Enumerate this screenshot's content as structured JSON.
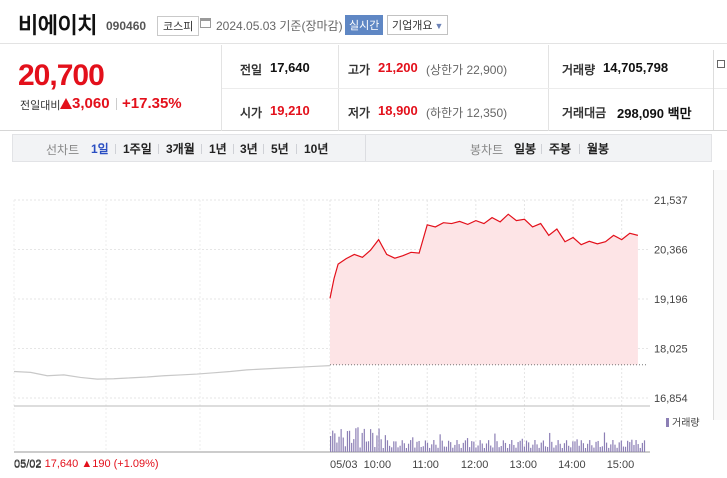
{
  "header": {
    "stock_name": "비에이치",
    "stock_code": "090460",
    "market_badge": "코스피",
    "date_info": "2024.05.03 기준(장마감)",
    "realtime_label": "실시간",
    "company_button": "기업개요"
  },
  "summary": {
    "price": "20,700",
    "change_label": "전일대비",
    "change_value": "3,060",
    "change_pct": "+17.35%",
    "prev_close_label": "전일",
    "prev_close": "17,640",
    "open_label": "시가",
    "open": "19,210",
    "high_label": "고가",
    "high": "21,200",
    "upper_limit": "(상한가 22,900)",
    "low_label": "저가",
    "low": "18,900",
    "lower_limit": "(하한가 12,350)",
    "volume_label": "거래량",
    "volume": "14,705,798",
    "amount_label": "거래대금",
    "amount": "298,090 백만"
  },
  "tabs": {
    "line_label": "선차트",
    "line_tabs": [
      "1일",
      "1주일",
      "3개월",
      "1년",
      "3년",
      "5년",
      "10년"
    ],
    "candle_label": "봉차트",
    "candle_tabs": [
      "일봉",
      "주봉",
      "월봉"
    ],
    "active": "1일"
  },
  "chart_data": {
    "type": "line",
    "y_ticks": [
      "21,537",
      "20,366",
      "19,196",
      "18,025",
      "16,854"
    ],
    "ylim": [
      16854,
      21537
    ],
    "x_ticks": [
      "05/03",
      "10:00",
      "11:00",
      "12:00",
      "13:00",
      "14:00",
      "15:00"
    ],
    "prev_day_label": "05/02",
    "prev_close_level": 17640,
    "series": [
      {
        "x": [
          "09:00",
          "09:05",
          "09:10",
          "09:20",
          "09:30",
          "09:40",
          "09:50",
          "10:00",
          "10:10",
          "10:20",
          "10:30",
          "10:40",
          "10:50",
          "11:00",
          "11:10",
          "11:20",
          "11:30",
          "11:40",
          "11:50",
          "12:00",
          "12:10",
          "12:20",
          "12:30",
          "12:40",
          "12:50",
          "13:00",
          "13:10",
          "13:20",
          "13:30",
          "13:40",
          "13:50",
          "14:00",
          "14:10",
          "14:20",
          "14:30",
          "14:40",
          "14:50",
          "15:00",
          "15:10",
          "15:20"
        ],
        "values": [
          19210,
          19680,
          20020,
          20150,
          20250,
          20180,
          20350,
          20600,
          20250,
          20160,
          20220,
          20300,
          20280,
          20950,
          20900,
          21000,
          20980,
          21030,
          20960,
          21050,
          20980,
          21120,
          21020,
          21200,
          21050,
          21080,
          20900,
          20980,
          20700,
          20850,
          20550,
          20650,
          20480,
          20560,
          20500,
          20550,
          20700,
          20600,
          20750,
          20700
        ]
      }
    ],
    "prev_day_values": [
      17480,
      17460,
      17380,
      17400,
      17340,
      17300,
      17310,
      17330,
      17350,
      17380,
      17400,
      17420,
      17450,
      17480,
      17520,
      17540,
      17560,
      17580,
      17600,
      17620
    ],
    "volume_legend": "거래량"
  },
  "footer": {
    "prev_date": "05/02",
    "prev_price": "17,640",
    "prev_change": "190",
    "prev_pct": "(+1.09%)"
  },
  "colors": {
    "up": "#e3101b",
    "active_tab": "#2a4ec2",
    "area_fill": "#fde4e6",
    "volume": "#8c7fb5"
  }
}
